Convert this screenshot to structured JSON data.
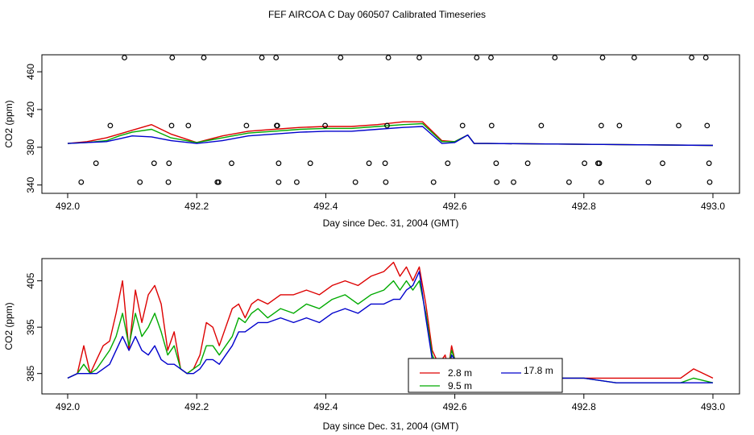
{
  "title": "FEF AIRCOA C  Day 060507  Calibrated Timeseries",
  "colors": {
    "red": "#dd0000",
    "green": "#00aa00",
    "blue": "#0000cc",
    "axis": "#000000"
  },
  "chart_data": [
    {
      "type": "scatter+line",
      "xlabel": "Day since Dec. 31, 2004 (GMT)",
      "ylabel": "CO2 (ppm)",
      "xlim": [
        492.0,
        493.0
      ],
      "ylim": [
        338,
        478
      ],
      "xticks": [
        {
          "v": 492.0,
          "label": "492.0"
        },
        {
          "v": 492.2,
          "label": "492.2"
        },
        {
          "v": 492.4,
          "label": "492.4"
        },
        {
          "v": 492.6,
          "label": "492.6"
        },
        {
          "v": 492.8,
          "label": "492.8"
        },
        {
          "v": 493.0,
          "label": "493.0"
        }
      ],
      "yticks": [
        {
          "v": 340,
          "label": "340"
        },
        {
          "v": 380,
          "label": "380"
        },
        {
          "v": 420,
          "label": "420"
        },
        {
          "v": 460,
          "label": "460"
        }
      ],
      "points": [
        {
          "x": 492.088,
          "y": 475
        },
        {
          "x": 492.162,
          "y": 475
        },
        {
          "x": 492.211,
          "y": 475
        },
        {
          "x": 492.301,
          "y": 475
        },
        {
          "x": 492.323,
          "y": 475
        },
        {
          "x": 492.423,
          "y": 475
        },
        {
          "x": 492.497,
          "y": 475
        },
        {
          "x": 492.545,
          "y": 475
        },
        {
          "x": 492.634,
          "y": 475
        },
        {
          "x": 492.656,
          "y": 475
        },
        {
          "x": 492.755,
          "y": 475
        },
        {
          "x": 492.829,
          "y": 475
        },
        {
          "x": 492.878,
          "y": 475
        },
        {
          "x": 492.967,
          "y": 475
        },
        {
          "x": 492.989,
          "y": 475
        },
        {
          "x": 492.066,
          "y": 403
        },
        {
          "x": 492.161,
          "y": 403
        },
        {
          "x": 492.187,
          "y": 403
        },
        {
          "x": 492.277,
          "y": 403
        },
        {
          "x": 492.324,
          "y": 403
        },
        {
          "x": 492.325,
          "y": 403
        },
        {
          "x": 492.399,
          "y": 403
        },
        {
          "x": 492.495,
          "y": 403
        },
        {
          "x": 492.612,
          "y": 403
        },
        {
          "x": 492.657,
          "y": 403
        },
        {
          "x": 492.734,
          "y": 403
        },
        {
          "x": 492.827,
          "y": 403
        },
        {
          "x": 492.855,
          "y": 403
        },
        {
          "x": 492.947,
          "y": 403
        },
        {
          "x": 492.991,
          "y": 403
        },
        {
          "x": 492.044,
          "y": 363
        },
        {
          "x": 492.134,
          "y": 363
        },
        {
          "x": 492.157,
          "y": 363
        },
        {
          "x": 492.254,
          "y": 363
        },
        {
          "x": 492.327,
          "y": 363
        },
        {
          "x": 492.376,
          "y": 363
        },
        {
          "x": 492.467,
          "y": 363
        },
        {
          "x": 492.492,
          "y": 363
        },
        {
          "x": 492.589,
          "y": 363
        },
        {
          "x": 492.664,
          "y": 363
        },
        {
          "x": 492.713,
          "y": 363
        },
        {
          "x": 492.801,
          "y": 363
        },
        {
          "x": 492.822,
          "y": 363
        },
        {
          "x": 492.824,
          "y": 363
        },
        {
          "x": 492.922,
          "y": 363
        },
        {
          "x": 492.994,
          "y": 363
        },
        {
          "x": 492.021,
          "y": 343
        },
        {
          "x": 492.112,
          "y": 343
        },
        {
          "x": 492.156,
          "y": 343
        },
        {
          "x": 492.232,
          "y": 343
        },
        {
          "x": 492.234,
          "y": 343
        },
        {
          "x": 492.327,
          "y": 343
        },
        {
          "x": 492.355,
          "y": 343
        },
        {
          "x": 492.446,
          "y": 343
        },
        {
          "x": 492.493,
          "y": 343
        },
        {
          "x": 492.567,
          "y": 343
        },
        {
          "x": 492.665,
          "y": 343
        },
        {
          "x": 492.691,
          "y": 343
        },
        {
          "x": 492.777,
          "y": 343
        },
        {
          "x": 492.827,
          "y": 343
        },
        {
          "x": 492.9,
          "y": 343
        },
        {
          "x": 492.995,
          "y": 343
        }
      ],
      "series": [
        {
          "name": "2.8 m",
          "color": "#dd0000",
          "x": [
            492.0,
            492.03,
            492.06,
            492.08,
            492.1,
            492.13,
            492.16,
            492.2,
            492.24,
            492.28,
            492.32,
            492.36,
            492.4,
            492.44,
            492.48,
            492.52,
            492.55,
            492.58,
            492.6,
            492.62,
            492.63,
            492.65,
            493.0
          ],
          "y": [
            384,
            386,
            390,
            394,
            398,
            404,
            394,
            385,
            392,
            397,
            399,
            401,
            402,
            402,
            404,
            407,
            407,
            387,
            386,
            393,
            384,
            384,
            382
          ]
        },
        {
          "name": "9.5 m",
          "color": "#00aa00",
          "x": [
            492.0,
            492.03,
            492.06,
            492.08,
            492.1,
            492.13,
            492.16,
            492.2,
            492.24,
            492.28,
            492.32,
            492.36,
            492.4,
            492.44,
            492.48,
            492.52,
            492.55,
            492.58,
            492.6,
            492.62,
            492.63,
            492.65,
            493.0
          ],
          "y": [
            384,
            385,
            387,
            392,
            396,
            399,
            390,
            385,
            390,
            395,
            397,
            399,
            400,
            400,
            402,
            404,
            405,
            386,
            386,
            393,
            384,
            384,
            382
          ]
        },
        {
          "name": "17.8 m",
          "color": "#0000cc",
          "x": [
            492.0,
            492.03,
            492.06,
            492.08,
            492.1,
            492.13,
            492.16,
            492.2,
            492.24,
            492.28,
            492.32,
            492.36,
            492.4,
            492.44,
            492.48,
            492.52,
            492.55,
            492.58,
            492.6,
            492.62,
            492.63,
            492.65,
            493.0
          ],
          "y": [
            384,
            385,
            386,
            389,
            392,
            391,
            387,
            384,
            387,
            392,
            394,
            396,
            397,
            397,
            399,
            401,
            402,
            384,
            385,
            393,
            384,
            384,
            382
          ]
        }
      ]
    },
    {
      "type": "line",
      "xlabel": "Day since Dec. 31, 2004 (GMT)",
      "ylabel": "CO2 (ppm)",
      "xlim": [
        492.0,
        493.0
      ],
      "ylim": [
        380.6,
        409.8
      ],
      "xticks": [
        {
          "v": 492.0,
          "label": "492.0"
        },
        {
          "v": 492.2,
          "label": "492.2"
        },
        {
          "v": 492.4,
          "label": "492.4"
        },
        {
          "v": 492.6,
          "label": "492.6"
        },
        {
          "v": 492.8,
          "label": "492.8"
        },
        {
          "v": 493.0,
          "label": "493.0"
        }
      ],
      "yticks": [
        {
          "v": 385,
          "label": "385"
        },
        {
          "v": 395,
          "label": "395"
        },
        {
          "v": 405,
          "label": "405"
        }
      ],
      "legend": {
        "position": "bottom-center",
        "entries": [
          {
            "name": "2.8 m",
            "color": "#dd0000"
          },
          {
            "name": "9.5 m",
            "color": "#00aa00"
          },
          {
            "name": "17.8 m",
            "color": "#0000cc"
          }
        ]
      },
      "series": [
        {
          "name": "2.8 m",
          "color": "#dd0000",
          "x": [
            492.0,
            492.015,
            492.025,
            492.035,
            492.045,
            492.055,
            492.065,
            492.075,
            492.085,
            492.095,
            492.105,
            492.115,
            492.125,
            492.135,
            492.145,
            492.155,
            492.165,
            492.175,
            492.185,
            492.195,
            492.205,
            492.215,
            492.225,
            492.235,
            492.245,
            492.255,
            492.265,
            492.275,
            492.285,
            492.295,
            492.31,
            492.33,
            492.35,
            492.37,
            492.39,
            492.41,
            492.43,
            492.45,
            492.47,
            492.49,
            492.505,
            492.515,
            492.525,
            492.535,
            492.545,
            492.555,
            492.565,
            492.575,
            492.585,
            492.59,
            492.595,
            492.6,
            492.61,
            492.62,
            492.63,
            492.65,
            492.7,
            492.75,
            492.8,
            492.85,
            492.9,
            492.95,
            492.97,
            493.0
          ],
          "y": [
            384,
            385,
            391,
            385,
            388,
            391,
            392,
            398,
            405,
            390,
            403,
            396,
            402,
            404,
            400,
            390,
            394,
            386,
            385,
            386,
            389,
            396,
            395,
            391,
            395,
            399,
            400,
            397,
            400,
            401,
            400,
            402,
            402,
            403,
            402,
            404,
            405,
            404,
            406,
            407,
            409,
            406,
            408,
            405,
            408,
            400,
            390,
            387,
            389,
            386,
            391,
            388,
            387,
            386,
            386,
            386,
            385,
            384,
            384,
            384,
            384,
            384,
            386,
            384
          ]
        },
        {
          "name": "9.5 m",
          "color": "#00aa00",
          "x": [
            492.0,
            492.015,
            492.025,
            492.035,
            492.045,
            492.055,
            492.065,
            492.075,
            492.085,
            492.095,
            492.105,
            492.115,
            492.125,
            492.135,
            492.145,
            492.155,
            492.165,
            492.175,
            492.185,
            492.195,
            492.205,
            492.215,
            492.225,
            492.235,
            492.245,
            492.255,
            492.265,
            492.275,
            492.285,
            492.295,
            492.31,
            492.33,
            492.35,
            492.37,
            492.39,
            492.41,
            492.43,
            492.45,
            492.47,
            492.49,
            492.505,
            492.515,
            492.525,
            492.535,
            492.545,
            492.555,
            492.565,
            492.575,
            492.585,
            492.59,
            492.595,
            492.6,
            492.61,
            492.62,
            492.63,
            492.65,
            492.7,
            492.75,
            492.8,
            492.85,
            492.9,
            492.95,
            492.97,
            493.0
          ],
          "y": [
            384,
            385,
            387,
            385,
            386,
            388,
            390,
            393,
            398,
            391,
            398,
            393,
            395,
            398,
            394,
            389,
            391,
            386,
            385,
            386,
            387,
            391,
            391,
            389,
            391,
            393,
            397,
            396,
            398,
            399,
            397,
            399,
            398,
            400,
            399,
            401,
            402,
            400,
            402,
            403,
            405,
            403,
            405,
            403,
            405,
            398,
            389,
            386,
            388,
            386,
            390,
            388,
            386,
            386,
            386,
            385,
            384,
            384,
            384,
            383,
            383,
            383,
            384,
            383
          ]
        },
        {
          "name": "17.8 m",
          "color": "#0000cc",
          "x": [
            492.0,
            492.015,
            492.025,
            492.035,
            492.045,
            492.055,
            492.065,
            492.075,
            492.085,
            492.095,
            492.105,
            492.115,
            492.125,
            492.135,
            492.145,
            492.155,
            492.165,
            492.175,
            492.185,
            492.195,
            492.205,
            492.215,
            492.225,
            492.235,
            492.245,
            492.255,
            492.265,
            492.275,
            492.285,
            492.295,
            492.31,
            492.33,
            492.35,
            492.37,
            492.39,
            492.41,
            492.43,
            492.45,
            492.47,
            492.49,
            492.505,
            492.515,
            492.525,
            492.535,
            492.545,
            492.555,
            492.565,
            492.575,
            492.585,
            492.59,
            492.595,
            492.6,
            492.61,
            492.62,
            492.63,
            492.65,
            492.7,
            492.75,
            492.8,
            492.85,
            492.9,
            492.95,
            492.97,
            493.0
          ],
          "y": [
            384,
            385,
            385,
            385,
            385,
            386,
            387,
            390,
            393,
            390,
            393,
            390,
            389,
            391,
            388,
            387,
            387,
            386,
            385,
            385,
            386,
            388,
            388,
            387,
            389,
            391,
            394,
            394,
            395,
            396,
            396,
            397,
            396,
            397,
            396,
            398,
            399,
            398,
            400,
            400,
            401,
            401,
            403,
            404,
            407,
            397,
            388,
            385,
            387,
            385,
            389,
            388,
            386,
            386,
            386,
            385,
            384,
            384,
            384,
            383,
            383,
            383,
            383,
            383
          ]
        }
      ]
    }
  ]
}
